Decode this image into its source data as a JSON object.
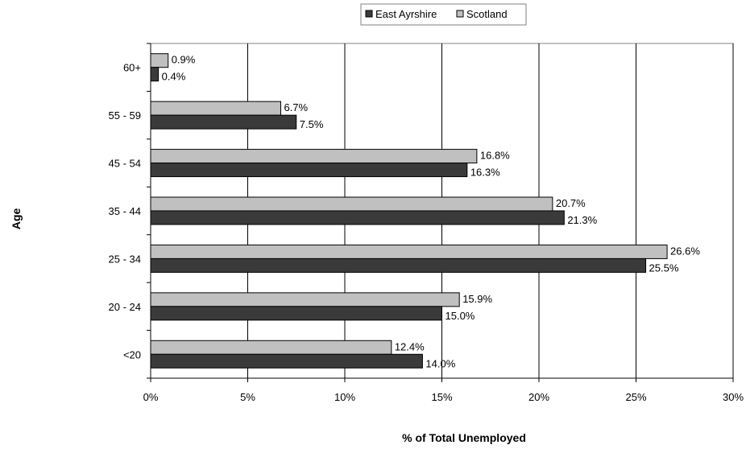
{
  "chart_data": {
    "type": "bar",
    "orientation": "horizontal",
    "categories": [
      "<20",
      "20 - 24",
      "25 - 34",
      "35 - 44",
      "45 - 54",
      "55 - 59",
      "60+"
    ],
    "series": [
      {
        "name": "East Ayrshire",
        "color": "#3a3a3a",
        "values": [
          14.0,
          15.0,
          25.5,
          21.3,
          16.3,
          7.5,
          0.4
        ],
        "labels": [
          "14.0%",
          "15.0%",
          "25.5%",
          "21.3%",
          "16.3%",
          "7.5%",
          "0.4%"
        ]
      },
      {
        "name": "Scotland",
        "color": "#c0c0c0",
        "values": [
          12.4,
          15.9,
          26.6,
          20.7,
          16.8,
          6.7,
          0.9
        ],
        "labels": [
          "12.4%",
          "15.9%",
          "26.6%",
          "20.7%",
          "16.8%",
          "6.7%",
          "0.9%"
        ]
      }
    ],
    "xlabel": "% of Total Unemployed",
    "ylabel": "Age",
    "xlim": [
      0,
      30
    ],
    "xticks": [
      "0%",
      "5%",
      "10%",
      "15%",
      "20%",
      "25%",
      "30%"
    ],
    "grid": "vertical",
    "legend": "top"
  }
}
